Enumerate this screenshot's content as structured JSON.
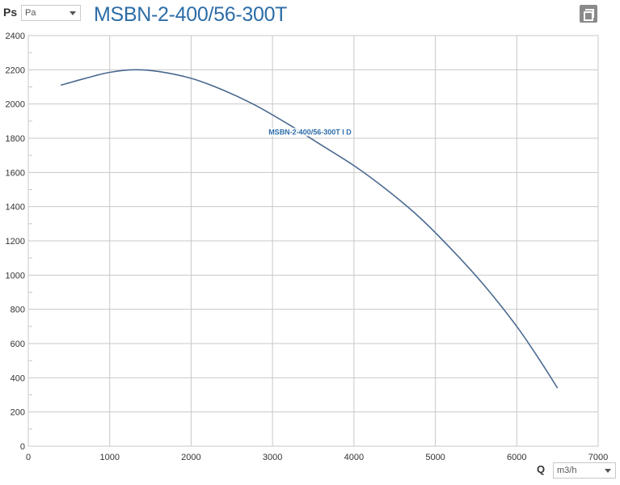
{
  "header": {
    "y_quantity": "Ps",
    "y_unit_selected": "Pa",
    "title": "MSBN-2-400/56-300T",
    "maximize_icon": "maximize-icon"
  },
  "footer": {
    "x_quantity": "Q",
    "x_unit_selected": "m3/h"
  },
  "chart_data": {
    "type": "line",
    "title": "MSBN-2-400/56-300T",
    "xlabel": "Q",
    "ylabel": "Ps",
    "xlim": [
      0,
      7000
    ],
    "ylim": [
      0,
      2400
    ],
    "x_ticks": [
      0,
      1000,
      2000,
      3000,
      4000,
      5000,
      6000,
      7000
    ],
    "y_ticks": [
      0,
      200,
      400,
      600,
      800,
      1000,
      1200,
      1400,
      1600,
      1800,
      2000,
      2200,
      2400
    ],
    "grid": true,
    "series": [
      {
        "name": "MSBN-2-400/56-300T I D",
        "color": "#4a6a8f",
        "points": [
          [
            400,
            2110
          ],
          [
            700,
            2150
          ],
          [
            1000,
            2185
          ],
          [
            1300,
            2200
          ],
          [
            1600,
            2190
          ],
          [
            2000,
            2150
          ],
          [
            2400,
            2080
          ],
          [
            2800,
            1990
          ],
          [
            3200,
            1880
          ],
          [
            3600,
            1760
          ],
          [
            4000,
            1640
          ],
          [
            4400,
            1500
          ],
          [
            4800,
            1340
          ],
          [
            5200,
            1150
          ],
          [
            5600,
            940
          ],
          [
            6000,
            700
          ],
          [
            6300,
            490
          ],
          [
            6500,
            340
          ]
        ]
      }
    ]
  }
}
